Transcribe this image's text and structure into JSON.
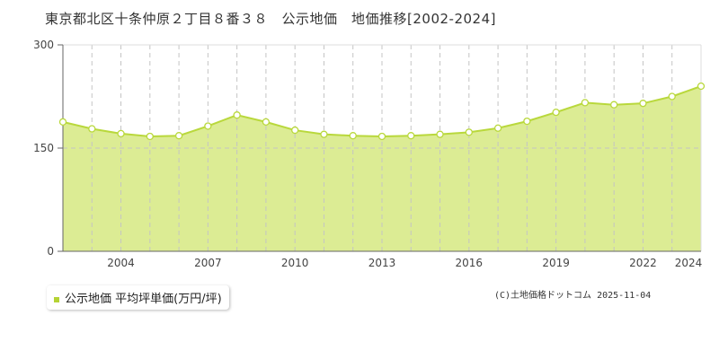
{
  "chart_data": {
    "type": "area",
    "title": "東京都北区十条仲原２丁目８番３８　公示地価　地価推移[2002-2024]",
    "x": [
      2002,
      2003,
      2004,
      2005,
      2006,
      2007,
      2008,
      2009,
      2010,
      2011,
      2012,
      2013,
      2014,
      2015,
      2016,
      2017,
      2018,
      2019,
      2020,
      2021,
      2022,
      2023,
      2024
    ],
    "series": [
      {
        "name": "公示地価 平均坪単価(万円/坪)",
        "values": [
          188,
          178,
          171,
          167,
          168,
          182,
          198,
          188,
          176,
          170,
          168,
          167,
          168,
          170,
          173,
          179,
          189,
          202,
          216,
          213,
          215,
          225,
          240
        ]
      }
    ],
    "xticks": [
      "2004",
      "2007",
      "2010",
      "2013",
      "2016",
      "2019",
      "2022",
      "2024"
    ],
    "yticks": [
      "0",
      "150",
      "300"
    ],
    "ylim": [
      0,
      300
    ],
    "xlim": [
      2002,
      2024
    ],
    "legend": "bottom-left",
    "colors": {
      "fill": "#dcec94",
      "line": "#b9d83c"
    }
  },
  "credit": "(C)土地価格ドットコム 2025-11-04"
}
